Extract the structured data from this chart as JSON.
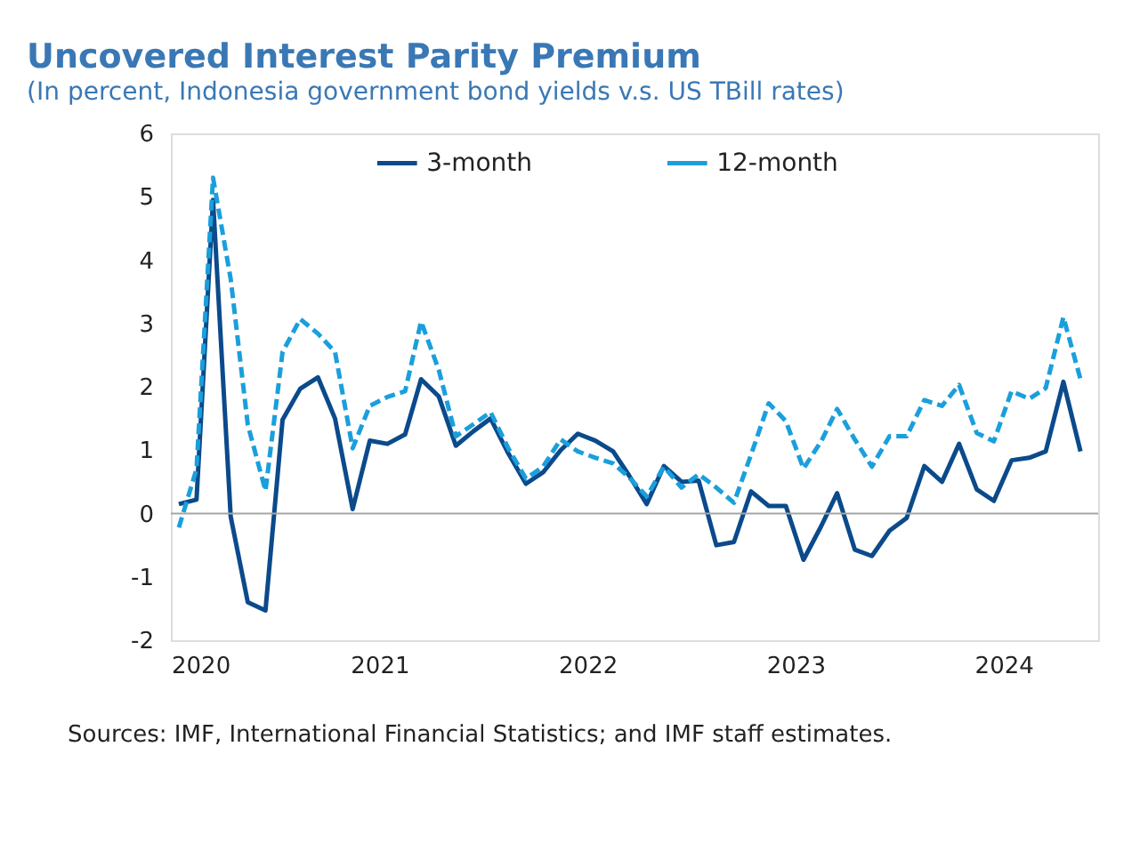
{
  "chart_data": {
    "type": "line",
    "title": "Uncovered Interest Parity Premium",
    "subtitle": "(In percent, Indonesia government bond yields v.s. US TBill rates)",
    "x": [
      "2020-01-15",
      "2020-02-15",
      "2020-03-15",
      "2020-04-15",
      "2020-05-15",
      "2020-06-15",
      "2020-07-15",
      "2020-08-15",
      "2020-09-15",
      "2020-10-15",
      "2020-11-15",
      "2020-12-15",
      "2021-01-15",
      "2021-02-15",
      "2021-03-15",
      "2021-04-15",
      "2021-05-15",
      "2021-06-15",
      "2021-07-15",
      "2021-08-15",
      "2021-09-15",
      "2021-10-15",
      "2021-11-15",
      "2021-12-15",
      "2022-01-15",
      "2022-02-15",
      "2022-03-15",
      "2022-04-15",
      "2022-05-15",
      "2022-06-15",
      "2022-07-15",
      "2022-08-15",
      "2022-09-15",
      "2022-10-15",
      "2022-11-15",
      "2022-12-15",
      "2023-01-15",
      "2023-02-15",
      "2023-03-15",
      "2023-04-15",
      "2023-05-15",
      "2023-06-15",
      "2023-07-15",
      "2023-08-15",
      "2023-09-15",
      "2023-10-15",
      "2023-11-15",
      "2023-12-15",
      "2024-01-15",
      "2024-02-15",
      "2024-03-15",
      "2024-04-15",
      "2024-05-15"
    ],
    "series": [
      {
        "name": "3-month",
        "color": "#0b4a8b",
        "line_style": "solid",
        "values": [
          0.15,
          0.22,
          4.95,
          -0.05,
          -1.4,
          -1.53,
          1.48,
          1.97,
          2.15,
          1.5,
          0.07,
          1.15,
          1.1,
          1.25,
          2.12,
          1.85,
          1.07,
          1.3,
          1.5,
          0.95,
          0.47,
          0.65,
          1.0,
          1.26,
          1.15,
          0.98,
          0.6,
          0.15,
          0.75,
          0.5,
          0.52,
          -0.5,
          -0.45,
          0.35,
          0.12,
          0.12,
          -0.73,
          -0.2,
          0.32,
          -0.57,
          -0.67,
          -0.27,
          -0.07,
          0.75,
          0.5,
          1.1,
          0.38,
          0.2,
          0.84,
          0.88,
          0.98,
          2.08,
          0.98
        ]
      },
      {
        "name": "12-month",
        "color": "#1a9fdc",
        "line_style": "dashed",
        "values": [
          -0.22,
          0.7,
          5.3,
          3.7,
          1.4,
          0.36,
          2.55,
          3.07,
          2.84,
          2.55,
          1.03,
          1.7,
          1.84,
          1.93,
          3.03,
          2.27,
          1.22,
          1.41,
          1.6,
          1.03,
          0.55,
          0.74,
          1.17,
          0.98,
          0.88,
          0.79,
          0.57,
          0.27,
          0.74,
          0.41,
          0.62,
          0.41,
          0.17,
          0.93,
          1.74,
          1.46,
          0.71,
          1.14,
          1.65,
          1.17,
          0.74,
          1.22,
          1.22,
          1.79,
          1.7,
          2.03,
          1.27,
          1.14,
          1.93,
          1.81,
          1.98,
          3.1,
          2.12
        ]
      }
    ],
    "xlim": [
      "2020-01-01",
      "2024-06-15"
    ],
    "xticks": [
      "2020",
      "2021",
      "2022",
      "2023",
      "2024"
    ],
    "ylim": [
      -2,
      6
    ],
    "yticks": [
      -2,
      -1,
      0,
      1,
      2,
      3,
      4,
      5,
      6
    ],
    "ref_lines": [
      {
        "axis": "y",
        "value": 0,
        "color": "#a6a6a6"
      }
    ],
    "grid": false,
    "legend": "top",
    "marker": "none",
    "annotations": [
      "Sources: IMF, International Financial Statistics; and IMF staff estimates."
    ]
  }
}
